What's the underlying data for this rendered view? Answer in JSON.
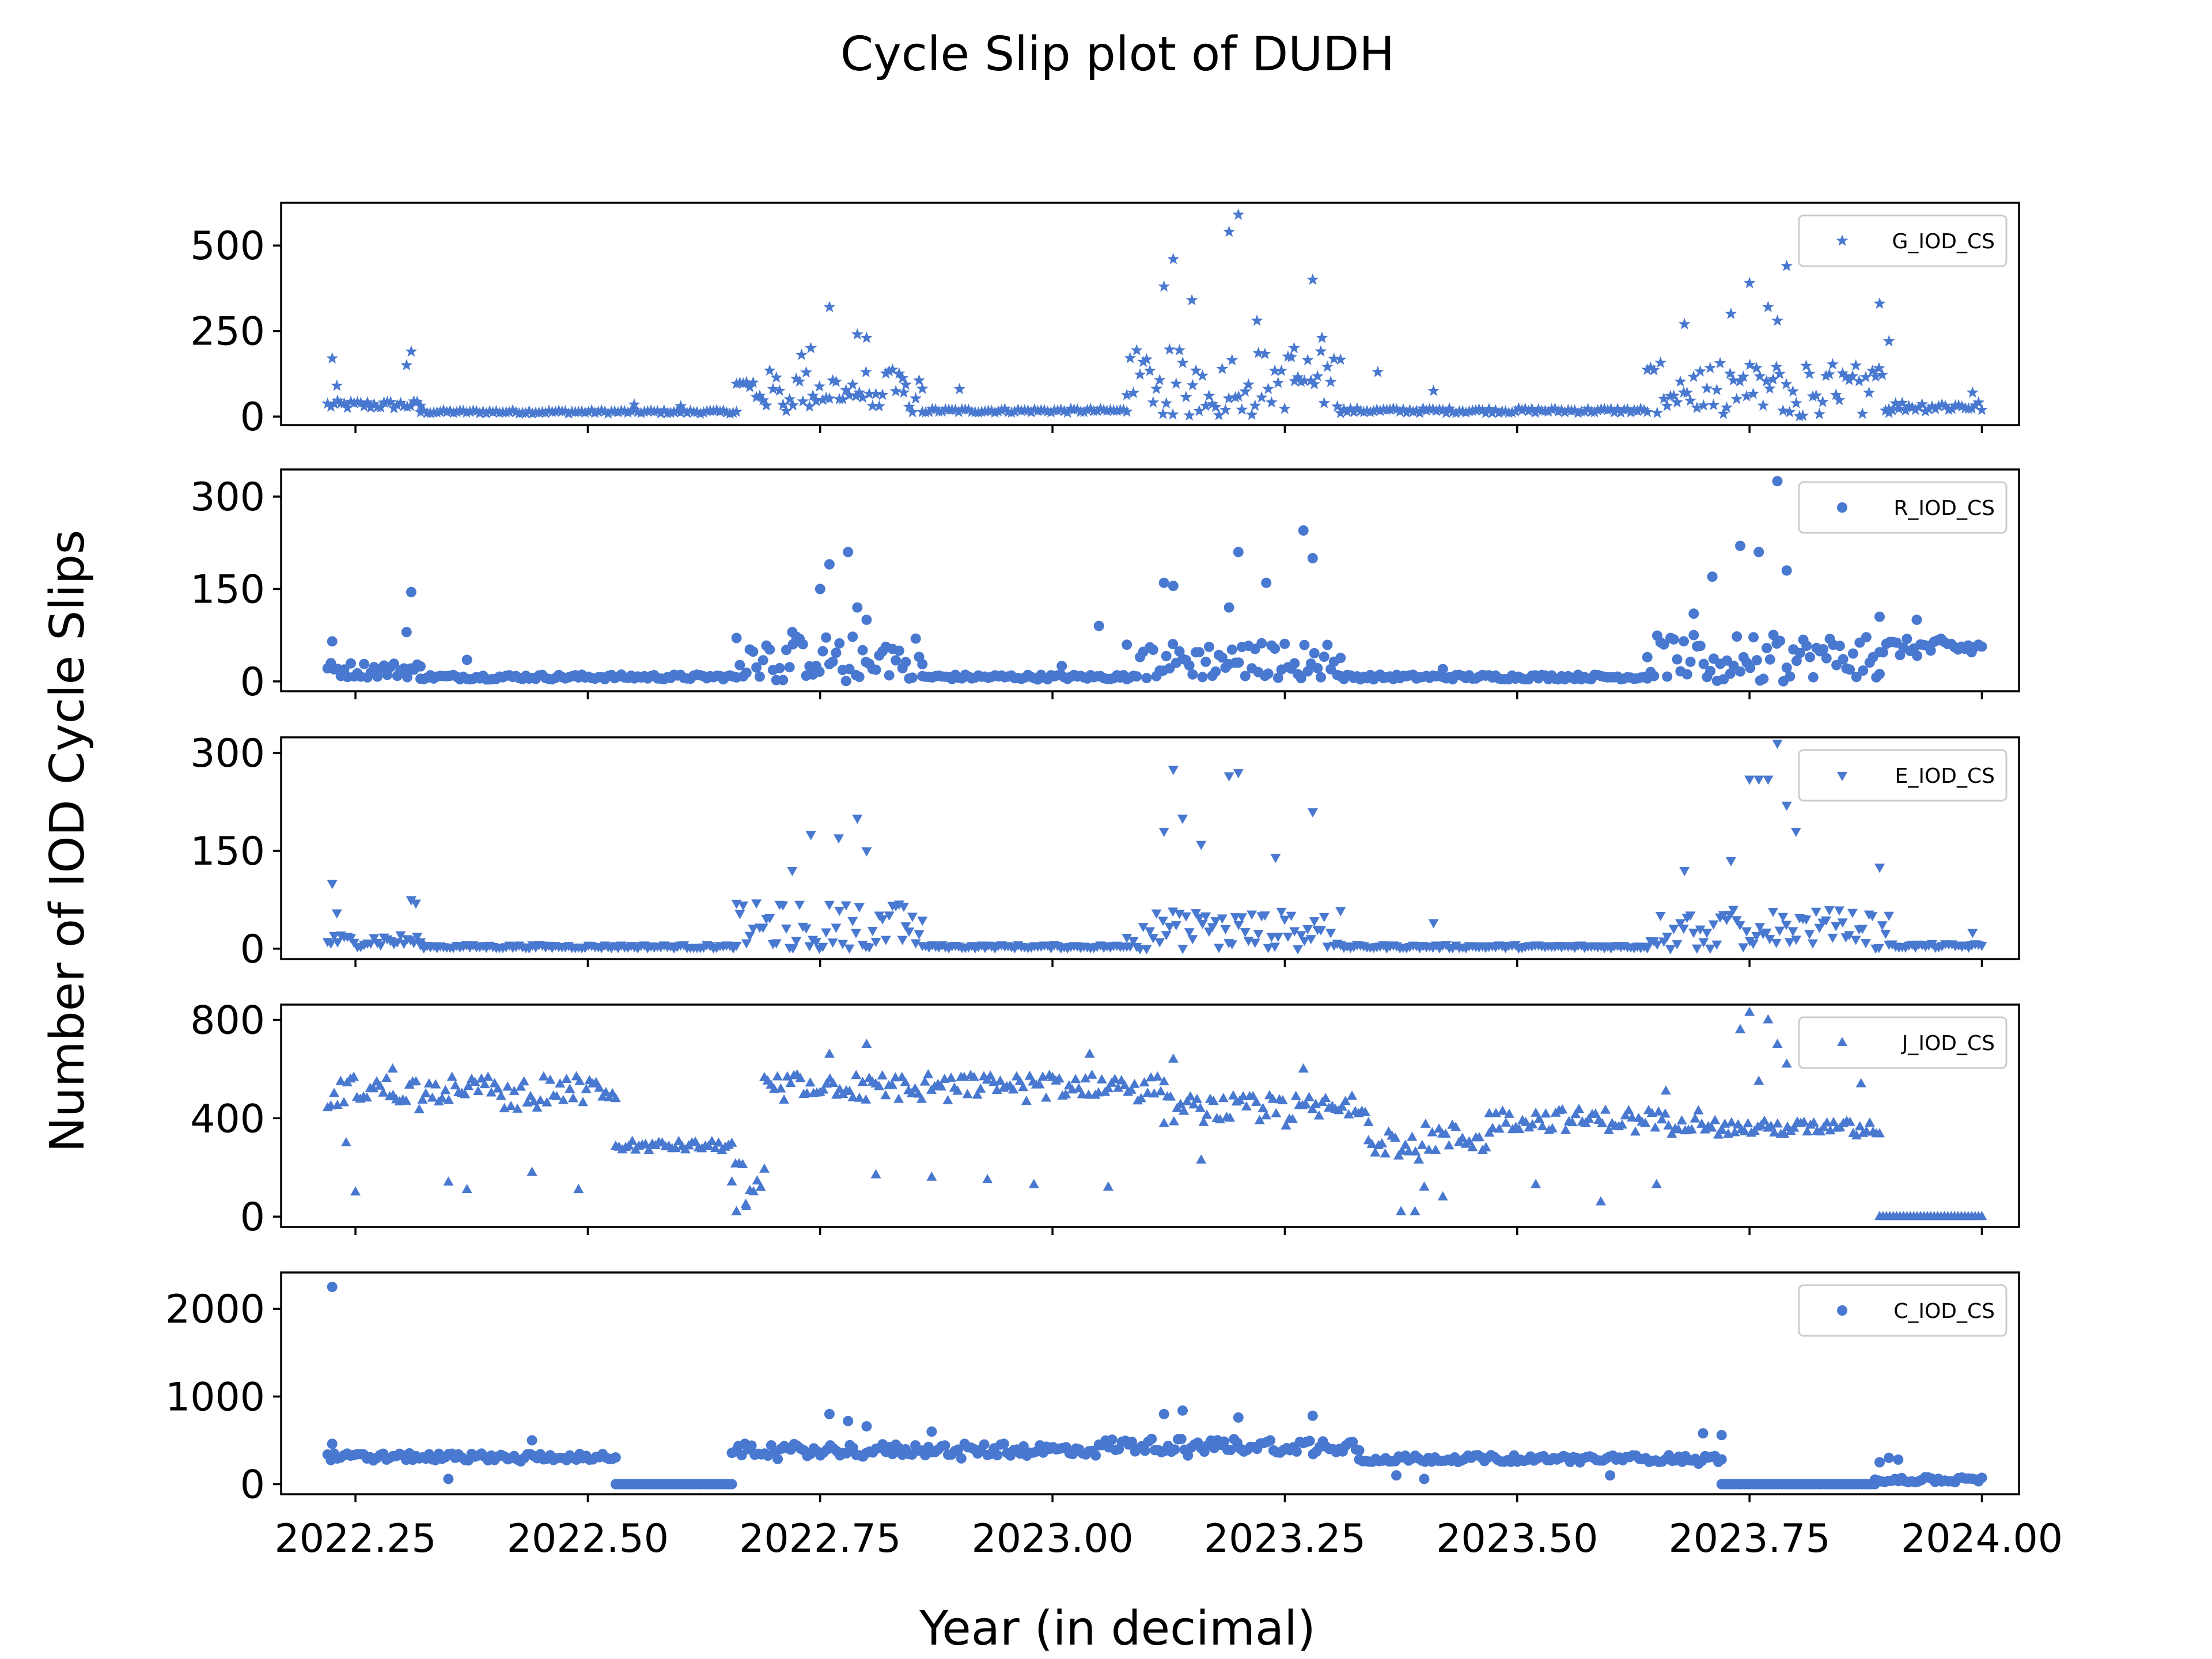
{
  "figure": {
    "title": "Cycle Slip plot of DUDH",
    "xlabel": "Year (in decimal)",
    "ylabel": "Number of IOD Cycle Slips"
  },
  "chart_data": [
    {
      "type": "scatter",
      "name": "G_IOD_CS",
      "legend": "G_IOD_CS",
      "marker": "star",
      "color": "#4878CF",
      "xlim": [
        2022.17,
        2024.04
      ],
      "ylim": [
        -25,
        625
      ],
      "yticks": [
        0,
        250,
        500
      ],
      "xticks": [
        2022.25,
        2022.5,
        2022.75,
        2023.0,
        2023.25,
        2023.5,
        2023.75,
        2024.0
      ],
      "segments": [
        {
          "x0": 2022.22,
          "x1": 2022.32,
          "base": 30,
          "var": 25,
          "spikes": [
            [
              2022.225,
              170
            ],
            [
              2022.23,
              90
            ],
            [
              2022.31,
              190
            ],
            [
              2022.305,
              150
            ]
          ]
        },
        {
          "x0": 2022.32,
          "x1": 2022.66,
          "base": 12,
          "var": 10,
          "spikes": [
            [
              2022.55,
              35
            ],
            [
              2022.6,
              30
            ]
          ]
        },
        {
          "x0": 2022.66,
          "x1": 2022.86,
          "base": 60,
          "var": 120,
          "spikes": [
            [
              2022.76,
              320
            ],
            [
              2022.79,
              240
            ],
            [
              2022.74,
              200
            ],
            [
              2022.8,
              230
            ],
            [
              2022.73,
              180
            ],
            [
              2022.84,
              70
            ]
          ]
        },
        {
          "x0": 2022.86,
          "x1": 2023.08,
          "base": 15,
          "var": 12,
          "spikes": [
            [
              2022.9,
              80
            ]
          ]
        },
        {
          "x0": 2023.08,
          "x1": 2023.31,
          "base": 80,
          "var": 180,
          "spikes": [
            [
              2023.2,
              590
            ],
            [
              2023.19,
              540
            ],
            [
              2023.13,
              460
            ],
            [
              2023.28,
              400
            ],
            [
              2023.12,
              380
            ],
            [
              2023.15,
              340
            ],
            [
              2023.26,
              200
            ],
            [
              2023.29,
              230
            ],
            [
              2023.22,
              280
            ]
          ]
        },
        {
          "x0": 2023.31,
          "x1": 2023.64,
          "base": 15,
          "var": 14,
          "spikes": [
            [
              2023.35,
              130
            ],
            [
              2023.41,
              75
            ]
          ]
        },
        {
          "x0": 2023.64,
          "x1": 2023.9,
          "base": 60,
          "var": 150,
          "spikes": [
            [
              2023.79,
              440
            ],
            [
              2023.75,
              390
            ],
            [
              2023.77,
              320
            ],
            [
              2023.68,
              270
            ],
            [
              2023.73,
              300
            ],
            [
              2023.78,
              280
            ],
            [
              2023.89,
              330
            ],
            [
              2023.9,
              220
            ]
          ]
        },
        {
          "x0": 2023.9,
          "x1": 2024.0,
          "base": 25,
          "var": 30,
          "spikes": [
            [
              2023.99,
              70
            ]
          ]
        }
      ]
    },
    {
      "type": "scatter",
      "name": "R_IOD_CS",
      "legend": "R_IOD_CS",
      "marker": "circle",
      "color": "#4878CF",
      "xlim": [
        2022.17,
        2024.04
      ],
      "ylim": [
        -16,
        344
      ],
      "yticks": [
        0,
        150,
        300
      ],
      "xticks": [
        2022.25,
        2022.5,
        2022.75,
        2023.0,
        2023.25,
        2023.5,
        2023.75,
        2024.0
      ],
      "segments": [
        {
          "x0": 2022.22,
          "x1": 2022.32,
          "base": 15,
          "var": 25,
          "spikes": [
            [
              2022.225,
              65
            ],
            [
              2022.31,
              145
            ],
            [
              2022.305,
              80
            ]
          ]
        },
        {
          "x0": 2022.32,
          "x1": 2022.66,
          "base": 6,
          "var": 8,
          "spikes": [
            [
              2022.37,
              35
            ]
          ]
        },
        {
          "x0": 2022.66,
          "x1": 2022.86,
          "base": 30,
          "var": 70,
          "spikes": [
            [
              2022.78,
              210
            ],
            [
              2022.76,
              190
            ],
            [
              2022.75,
              150
            ],
            [
              2022.79,
              120
            ],
            [
              2022.8,
              100
            ],
            [
              2022.72,
              80
            ]
          ]
        },
        {
          "x0": 2022.86,
          "x1": 2023.08,
          "base": 6,
          "var": 8,
          "spikes": [
            [
              2023.01,
              25
            ]
          ]
        },
        {
          "x0": 2023.08,
          "x1": 2023.31,
          "base": 25,
          "var": 60,
          "spikes": [
            [
              2023.27,
              245
            ],
            [
              2023.2,
              210
            ],
            [
              2023.28,
              200
            ],
            [
              2023.12,
              160
            ],
            [
              2023.13,
              155
            ],
            [
              2023.23,
              160
            ],
            [
              2023.19,
              120
            ],
            [
              2023.05,
              90
            ]
          ]
        },
        {
          "x0": 2023.31,
          "x1": 2023.64,
          "base": 6,
          "var": 8,
          "spikes": [
            [
              2023.42,
              20
            ]
          ]
        },
        {
          "x0": 2023.64,
          "x1": 2023.89,
          "base": 30,
          "var": 70,
          "spikes": [
            [
              2023.78,
              325
            ],
            [
              2023.74,
              220
            ],
            [
              2023.76,
              210
            ],
            [
              2023.79,
              180
            ],
            [
              2023.71,
              170
            ],
            [
              2023.69,
              110
            ]
          ]
        },
        {
          "x0": 2023.89,
          "x1": 2024.0,
          "base": 50,
          "var": 30,
          "spikes": [
            [
              2023.89,
              105
            ],
            [
              2023.93,
              100
            ]
          ]
        }
      ]
    },
    {
      "type": "scatter",
      "name": "E_IOD_CS",
      "legend": "E_IOD_CS",
      "marker": "triangle-down",
      "color": "#4878CF",
      "xlim": [
        2022.17,
        2024.04
      ],
      "ylim": [
        -16,
        324
      ],
      "yticks": [
        0,
        150,
        300
      ],
      "xticks": [
        2022.25,
        2022.5,
        2022.75,
        2023.0,
        2023.25,
        2023.5,
        2023.75,
        2024.0
      ],
      "segments": [
        {
          "x0": 2022.22,
          "x1": 2022.32,
          "base": 10,
          "var": 20,
          "spikes": [
            [
              2022.225,
              100
            ],
            [
              2022.23,
              55
            ],
            [
              2022.31,
              75
            ],
            [
              2022.315,
              70
            ]
          ]
        },
        {
          "x0": 2022.32,
          "x1": 2022.66,
          "base": 3,
          "var": 5,
          "spikes": []
        },
        {
          "x0": 2022.66,
          "x1": 2022.86,
          "base": 25,
          "var": 70,
          "spikes": [
            [
              2022.79,
              200
            ],
            [
              2022.74,
              175
            ],
            [
              2022.77,
              170
            ],
            [
              2022.8,
              150
            ],
            [
              2022.72,
              120
            ],
            [
              2022.84,
              65
            ]
          ]
        },
        {
          "x0": 2022.86,
          "x1": 2023.08,
          "base": 3,
          "var": 5,
          "spikes": []
        },
        {
          "x0": 2023.08,
          "x1": 2023.31,
          "base": 20,
          "var": 60,
          "spikes": [
            [
              2023.13,
              275
            ],
            [
              2023.2,
              270
            ],
            [
              2023.19,
              265
            ],
            [
              2023.14,
              200
            ],
            [
              2023.28,
              210
            ],
            [
              2023.12,
              180
            ],
            [
              2023.24,
              140
            ],
            [
              2023.16,
              160
            ]
          ]
        },
        {
          "x0": 2023.31,
          "x1": 2023.64,
          "base": 3,
          "var": 5,
          "spikes": [
            [
              2023.41,
              40
            ]
          ]
        },
        {
          "x0": 2023.64,
          "x1": 2023.9,
          "base": 25,
          "var": 55,
          "spikes": [
            [
              2023.78,
              315
            ],
            [
              2023.76,
              260
            ],
            [
              2023.75,
              260
            ],
            [
              2023.79,
              220
            ],
            [
              2023.77,
              260
            ],
            [
              2023.8,
              180
            ],
            [
              2023.68,
              120
            ],
            [
              2023.73,
              135
            ],
            [
              2023.89,
              125
            ]
          ]
        },
        {
          "x0": 2023.9,
          "x1": 2024.0,
          "base": 4,
          "var": 6,
          "spikes": [
            [
              2023.99,
              25
            ]
          ]
        }
      ]
    },
    {
      "type": "scatter",
      "name": "J_IOD_CS",
      "legend": "J_IOD_CS",
      "marker": "triangle-up",
      "color": "#4878CF",
      "xlim": [
        2022.17,
        2024.04
      ],
      "ylim": [
        -42,
        862
      ],
      "yticks": [
        0,
        400,
        800
      ],
      "xticks": [
        2022.25,
        2022.5,
        2022.75,
        2023.0,
        2023.25,
        2023.5,
        2023.75,
        2024.0
      ],
      "segments": [
        {
          "x0": 2022.22,
          "x1": 2022.53,
          "base": 500,
          "var": 110,
          "spikes": [
            [
              2022.25,
              100
            ],
            [
              2022.35,
              140
            ],
            [
              2022.37,
              110
            ],
            [
              2022.44,
              180
            ],
            [
              2022.49,
              110
            ],
            [
              2022.24,
              300
            ],
            [
              2022.29,
              600
            ]
          ]
        },
        {
          "x0": 2022.53,
          "x1": 2022.655,
          "base": 280,
          "var": 40,
          "spikes": []
        },
        {
          "x0": 2022.655,
          "x1": 2022.69,
          "base": 120,
          "var": 150,
          "spikes": [
            [
              2022.66,
              20
            ],
            [
              2022.67,
              50
            ]
          ]
        },
        {
          "x0": 2022.69,
          "x1": 2023.12,
          "base": 520,
          "var": 90,
          "spikes": [
            [
              2022.81,
              170
            ],
            [
              2022.87,
              160
            ],
            [
              2022.93,
              150
            ],
            [
              2022.98,
              130
            ],
            [
              2023.06,
              120
            ],
            [
              2022.8,
              700
            ],
            [
              2023.04,
              660
            ],
            [
              2022.76,
              660
            ]
          ]
        },
        {
          "x0": 2023.12,
          "x1": 2023.34,
          "base": 420,
          "var": 110,
          "spikes": [
            [
              2023.13,
              640
            ],
            [
              2023.16,
              230
            ],
            [
              2023.27,
              600
            ]
          ]
        },
        {
          "x0": 2023.34,
          "x1": 2023.47,
          "base": 300,
          "var": 120,
          "spikes": [
            [
              2023.375,
              20
            ],
            [
              2023.39,
              20
            ],
            [
              2023.4,
              120
            ],
            [
              2023.42,
              80
            ]
          ]
        },
        {
          "x0": 2023.47,
          "x1": 2023.72,
          "base": 380,
          "var": 90,
          "spikes": [
            [
              2023.52,
              130
            ],
            [
              2023.59,
              60
            ],
            [
              2023.65,
              130
            ],
            [
              2023.66,
              510
            ]
          ]
        },
        {
          "x0": 2023.72,
          "x1": 2023.89,
          "base": 350,
          "var": 60,
          "spikes": [
            [
              2023.75,
              830
            ],
            [
              2023.77,
              800
            ],
            [
              2023.74,
              760
            ],
            [
              2023.78,
              700
            ],
            [
              2023.79,
              620
            ],
            [
              2023.76,
              550
            ],
            [
              2023.87,
              540
            ]
          ]
        },
        {
          "x0": 2023.89,
          "x1": 2024.0,
          "base": 0,
          "var": 0,
          "spikes": []
        }
      ]
    },
    {
      "type": "scatter",
      "name": "C_IOD_CS",
      "legend": "C_IOD_CS",
      "marker": "circle",
      "color": "#4878CF",
      "xlim": [
        2022.17,
        2024.04
      ],
      "ylim": [
        -115,
        2415
      ],
      "yticks": [
        0,
        1000,
        2000
      ],
      "xticks": [
        2022.25,
        2022.5,
        2022.75,
        2023.0,
        2023.25,
        2023.5,
        2023.75,
        2024.0
      ],
      "segments": [
        {
          "x0": 2022.22,
          "x1": 2022.53,
          "base": 300,
          "var": 80,
          "spikes": [
            [
              2022.225,
              2250
            ],
            [
              2022.225,
              460
            ],
            [
              2022.44,
              500
            ],
            [
              2022.35,
              60
            ]
          ]
        },
        {
          "x0": 2022.53,
          "x1": 2022.655,
          "base": 0,
          "var": 0,
          "spikes": []
        },
        {
          "x0": 2022.655,
          "x1": 2023.05,
          "base": 370,
          "var": 140,
          "spikes": [
            [
              2022.76,
              800
            ],
            [
              2022.78,
              720
            ],
            [
              2022.8,
              660
            ],
            [
              2022.87,
              600
            ]
          ]
        },
        {
          "x0": 2023.05,
          "x1": 2023.33,
          "base": 420,
          "var": 160,
          "spikes": [
            [
              2023.14,
              840
            ],
            [
              2023.12,
              800
            ],
            [
              2023.28,
              780
            ],
            [
              2023.2,
              760
            ]
          ]
        },
        {
          "x0": 2023.33,
          "x1": 2023.72,
          "base": 280,
          "var": 80,
          "spikes": [
            [
              2023.4,
              60
            ],
            [
              2023.37,
              100
            ],
            [
              2023.6,
              100
            ],
            [
              2023.7,
              580
            ],
            [
              2023.72,
              560
            ]
          ]
        },
        {
          "x0": 2023.72,
          "x1": 2023.885,
          "base": 0,
          "var": 0,
          "spikes": []
        },
        {
          "x0": 2023.885,
          "x1": 2024.0,
          "base": 40,
          "var": 60,
          "spikes": [
            [
              2023.9,
              300
            ],
            [
              2023.89,
              250
            ],
            [
              2023.91,
              280
            ]
          ]
        }
      ]
    }
  ]
}
